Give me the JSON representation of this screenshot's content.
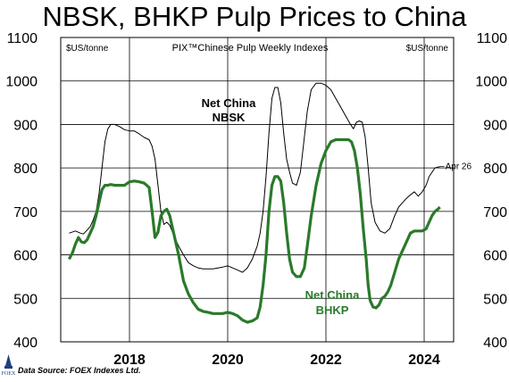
{
  "page": {
    "title": "NBSK, BHKP Pulp Prices to China"
  },
  "chart_data": {
    "type": "line",
    "title": "NBSK, BHKP Pulp Prices to China",
    "subtitle": "PIX™Chinese Pulp Weekly Indexes",
    "ylabel_left": "$US/tonne",
    "ylabel_right": "$US/tonne",
    "ylim": [
      400,
      1100
    ],
    "yticks": [
      "1100",
      "1000",
      "900",
      "800",
      "700",
      "600",
      "500",
      "400"
    ],
    "xlim": [
      2016.6,
      2024.6
    ],
    "xticks": [
      "2018",
      "2020",
      "2022",
      "2024"
    ],
    "grid": true,
    "legend": "inline labels",
    "series": [
      {
        "name": "Net China NBSK",
        "label_lines": [
          "Net China",
          "NBSK"
        ],
        "color": "#000000",
        "x": [
          2016.77,
          2016.9,
          2017.0,
          2017.06,
          2017.12,
          2017.2,
          2017.26,
          2017.32,
          2017.38,
          2017.44,
          2017.5,
          2017.56,
          2017.62,
          2017.7,
          2017.8,
          2017.9,
          2018.0,
          2018.1,
          2018.2,
          2018.3,
          2018.4,
          2018.46,
          2018.52,
          2018.58,
          2018.64,
          2018.7,
          2018.76,
          2018.82,
          2018.9,
          2019.0,
          2019.1,
          2019.2,
          2019.3,
          2019.4,
          2019.5,
          2019.6,
          2019.7,
          2019.8,
          2019.9,
          2020.0,
          2020.1,
          2020.2,
          2020.3,
          2020.4,
          2020.5,
          2020.6,
          2020.66,
          2020.72,
          2020.78,
          2020.84,
          2020.9,
          2020.96,
          2021.02,
          2021.08,
          2021.14,
          2021.2,
          2021.26,
          2021.32,
          2021.4,
          2021.48,
          2021.56,
          2021.62,
          2021.7,
          2021.8,
          2021.9,
          2022.0,
          2022.1,
          2022.2,
          2022.3,
          2022.4,
          2022.5,
          2022.56,
          2022.62,
          2022.68,
          2022.74,
          2022.8,
          2022.86,
          2022.92,
          2023.0,
          2023.1,
          2023.2,
          2023.3,
          2023.4,
          2023.48,
          2023.56,
          2023.64,
          2023.72,
          2023.8,
          2023.88,
          2023.96,
          2024.04,
          2024.1,
          2024.16,
          2024.22,
          2024.28,
          2024.32
        ],
        "values": [
          650,
          655,
          650,
          648,
          655,
          665,
          680,
          700,
          740,
          800,
          860,
          890,
          900,
          900,
          895,
          888,
          885,
          885,
          878,
          870,
          865,
          850,
          820,
          760,
          700,
          670,
          675,
          668,
          645,
          620,
          600,
          582,
          575,
          570,
          568,
          568,
          568,
          570,
          572,
          575,
          570,
          565,
          560,
          570,
          590,
          620,
          650,
          700,
          780,
          880,
          960,
          985,
          985,
          950,
          880,
          820,
          790,
          765,
          760,
          790,
          870,
          930,
          980,
          995,
          995,
          990,
          980,
          960,
          940,
          920,
          900,
          890,
          905,
          908,
          905,
          870,
          800,
          720,
          675,
          655,
          650,
          660,
          690,
          710,
          720,
          730,
          738,
          745,
          735,
          745,
          760,
          780,
          790,
          800,
          802,
          803
        ],
        "end_label": "Apr 26"
      },
      {
        "name": "Net China BHKP",
        "label_lines": [
          "Net China",
          "BHKP"
        ],
        "color": "#2a7a2a",
        "x": [
          2016.77,
          2016.84,
          2016.9,
          2016.96,
          2017.02,
          2017.08,
          2017.14,
          2017.2,
          2017.26,
          2017.32,
          2017.38,
          2017.44,
          2017.5,
          2017.56,
          2017.62,
          2017.7,
          2017.8,
          2017.9,
          2018.0,
          2018.1,
          2018.2,
          2018.3,
          2018.4,
          2018.46,
          2018.52,
          2018.58,
          2018.64,
          2018.7,
          2018.76,
          2018.82,
          2018.9,
          2019.0,
          2019.1,
          2019.2,
          2019.3,
          2019.4,
          2019.5,
          2019.6,
          2019.7,
          2019.8,
          2019.9,
          2020.0,
          2020.1,
          2020.2,
          2020.3,
          2020.4,
          2020.5,
          2020.6,
          2020.66,
          2020.72,
          2020.78,
          2020.84,
          2020.9,
          2020.96,
          2021.02,
          2021.08,
          2021.14,
          2021.2,
          2021.26,
          2021.32,
          2021.4,
          2021.48,
          2021.56,
          2021.62,
          2021.7,
          2021.8,
          2021.9,
          2022.0,
          2022.1,
          2022.2,
          2022.3,
          2022.4,
          2022.46,
          2022.52,
          2022.58,
          2022.64,
          2022.7,
          2022.76,
          2022.82,
          2022.86,
          2022.9,
          2022.96,
          2023.02,
          2023.08,
          2023.14,
          2023.2,
          2023.26,
          2023.32,
          2023.4,
          2023.48,
          2023.56,
          2023.64,
          2023.72,
          2023.8,
          2023.88,
          2023.96,
          2024.04,
          2024.1,
          2024.16,
          2024.22,
          2024.28,
          2024.32
        ],
        "values": [
          590,
          605,
          625,
          640,
          630,
          628,
          635,
          650,
          665,
          690,
          720,
          750,
          760,
          760,
          762,
          760,
          760,
          760,
          768,
          770,
          768,
          765,
          755,
          700,
          640,
          652,
          690,
          700,
          705,
          690,
          650,
          600,
          540,
          510,
          490,
          475,
          470,
          468,
          465,
          465,
          465,
          468,
          465,
          460,
          450,
          445,
          448,
          455,
          480,
          530,
          600,
          700,
          760,
          780,
          780,
          770,
          720,
          650,
          590,
          560,
          550,
          550,
          570,
          620,
          690,
          760,
          810,
          840,
          860,
          865,
          865,
          865,
          865,
          860,
          840,
          800,
          740,
          660,
          590,
          530,
          495,
          480,
          478,
          485,
          500,
          505,
          515,
          530,
          560,
          590,
          610,
          630,
          650,
          655,
          655,
          655,
          660,
          675,
          690,
          700,
          705,
          710
        ]
      }
    ]
  },
  "footer": {
    "source": "Data Source: FOEX Indexes Ltd.",
    "logo_text": "FOEX"
  }
}
